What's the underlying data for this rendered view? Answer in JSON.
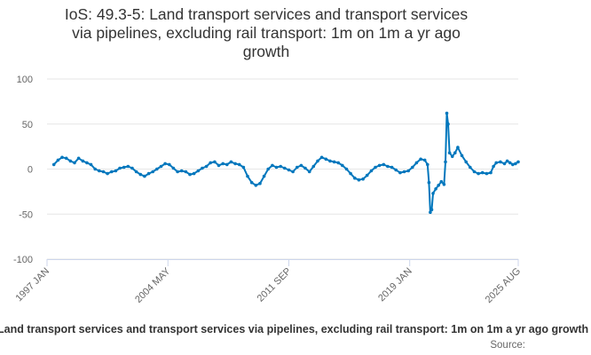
{
  "chart_data": {
    "type": "line",
    "title_lines": [
      "IoS: 49.3-5: Land transport services and transport services",
      "via pipelines, excluding rail transport: 1m on 1m a yr ago",
      "growth"
    ],
    "xlabel": "",
    "ylabel": "",
    "x_ticks": [
      "1997 JAN",
      "2004 MAY",
      "2011 SEP",
      "2019 JAN",
      "2025 AUG"
    ],
    "y_ticks": [
      100,
      50,
      0,
      -50,
      -100
    ],
    "ylim": [
      -100,
      100
    ],
    "xlim": [
      "1997-01",
      "2025-08"
    ],
    "grid": true,
    "legend_text": "Land transport services and transport services via pipelines, excluding rail transport: 1m on 1m a yr ago growth",
    "source_text": "Source:",
    "series_color": "#0077bd",
    "series": [
      {
        "name": "Land transport services and transport services via pipelines, excluding rail transport: 1m on 1m a yr ago growth",
        "points": [
          [
            "1997-06",
            5
          ],
          [
            "1997-09",
            10
          ],
          [
            "1997-12",
            13
          ],
          [
            "1998-03",
            12
          ],
          [
            "1998-06",
            9
          ],
          [
            "1998-09",
            7
          ],
          [
            "1998-12",
            12
          ],
          [
            "1999-03",
            9
          ],
          [
            "1999-06",
            7
          ],
          [
            "1999-09",
            5
          ],
          [
            "1999-12",
            0
          ],
          [
            "2000-03",
            -2
          ],
          [
            "2000-06",
            -3
          ],
          [
            "2000-09",
            -5
          ],
          [
            "2000-12",
            -3
          ],
          [
            "2001-03",
            -2
          ],
          [
            "2001-06",
            1
          ],
          [
            "2001-09",
            2
          ],
          [
            "2001-12",
            3
          ],
          [
            "2002-03",
            1
          ],
          [
            "2002-06",
            -3
          ],
          [
            "2002-09",
            -6
          ],
          [
            "2002-12",
            -8
          ],
          [
            "2003-03",
            -5
          ],
          [
            "2003-06",
            -3
          ],
          [
            "2003-09",
            0
          ],
          [
            "2003-12",
            3
          ],
          [
            "2004-03",
            6
          ],
          [
            "2004-06",
            5
          ],
          [
            "2004-09",
            1
          ],
          [
            "2004-12",
            -3
          ],
          [
            "2005-03",
            -2
          ],
          [
            "2005-06",
            -3
          ],
          [
            "2005-09",
            -6
          ],
          [
            "2005-12",
            -5
          ],
          [
            "2006-03",
            -2
          ],
          [
            "2006-06",
            1
          ],
          [
            "2006-09",
            3
          ],
          [
            "2006-12",
            7
          ],
          [
            "2007-03",
            8
          ],
          [
            "2007-06",
            4
          ],
          [
            "2007-09",
            6
          ],
          [
            "2007-12",
            5
          ],
          [
            "2008-03",
            8
          ],
          [
            "2008-06",
            6
          ],
          [
            "2008-09",
            5
          ],
          [
            "2008-12",
            2
          ],
          [
            "2009-03",
            -8
          ],
          [
            "2009-06",
            -15
          ],
          [
            "2009-09",
            -18
          ],
          [
            "2009-12",
            -16
          ],
          [
            "2010-03",
            -8
          ],
          [
            "2010-06",
            0
          ],
          [
            "2010-09",
            4
          ],
          [
            "2010-12",
            2
          ],
          [
            "2011-03",
            3
          ],
          [
            "2011-06",
            1
          ],
          [
            "2011-09",
            -1
          ],
          [
            "2011-12",
            -3
          ],
          [
            "2012-03",
            2
          ],
          [
            "2012-06",
            4
          ],
          [
            "2012-09",
            1
          ],
          [
            "2012-12",
            -3
          ],
          [
            "2013-03",
            3
          ],
          [
            "2013-06",
            9
          ],
          [
            "2013-09",
            13
          ],
          [
            "2013-12",
            11
          ],
          [
            "2014-03",
            9
          ],
          [
            "2014-06",
            8
          ],
          [
            "2014-09",
            7
          ],
          [
            "2014-12",
            4
          ],
          [
            "2015-03",
            0
          ],
          [
            "2015-06",
            -5
          ],
          [
            "2015-09",
            -10
          ],
          [
            "2015-12",
            -12
          ],
          [
            "2016-03",
            -11
          ],
          [
            "2016-06",
            -7
          ],
          [
            "2016-09",
            -2
          ],
          [
            "2016-12",
            2
          ],
          [
            "2017-03",
            4
          ],
          [
            "2017-06",
            5
          ],
          [
            "2017-09",
            3
          ],
          [
            "2017-12",
            2
          ],
          [
            "2018-03",
            -1
          ],
          [
            "2018-06",
            -4
          ],
          [
            "2018-09",
            -3
          ],
          [
            "2018-12",
            -2
          ],
          [
            "2019-03",
            2
          ],
          [
            "2019-06",
            7
          ],
          [
            "2019-09",
            11
          ],
          [
            "2019-12",
            10
          ],
          [
            "2020-02",
            5
          ],
          [
            "2020-03",
            -15
          ],
          [
            "2020-04",
            -48
          ],
          [
            "2020-05",
            -45
          ],
          [
            "2020-06",
            -27
          ],
          [
            "2020-08",
            -22
          ],
          [
            "2020-10",
            -18
          ],
          [
            "2020-12",
            -14
          ],
          [
            "2021-02",
            -17
          ],
          [
            "2021-03",
            8
          ],
          [
            "2021-04",
            62
          ],
          [
            "2021-05",
            50
          ],
          [
            "2021-06",
            18
          ],
          [
            "2021-08",
            14
          ],
          [
            "2021-10",
            18
          ],
          [
            "2021-12",
            24
          ],
          [
            "2022-03",
            15
          ],
          [
            "2022-06",
            8
          ],
          [
            "2022-09",
            2
          ],
          [
            "2022-12",
            -3
          ],
          [
            "2023-03",
            -5
          ],
          [
            "2023-06",
            -4
          ],
          [
            "2023-09",
            -5
          ],
          [
            "2023-12",
            -4
          ],
          [
            "2024-02",
            3
          ],
          [
            "2024-04",
            7
          ],
          [
            "2024-07",
            8
          ],
          [
            "2024-10",
            6
          ],
          [
            "2024-12",
            9
          ],
          [
            "2025-02",
            7
          ],
          [
            "2025-04",
            5
          ],
          [
            "2025-06",
            6
          ],
          [
            "2025-08",
            8
          ]
        ]
      }
    ]
  }
}
